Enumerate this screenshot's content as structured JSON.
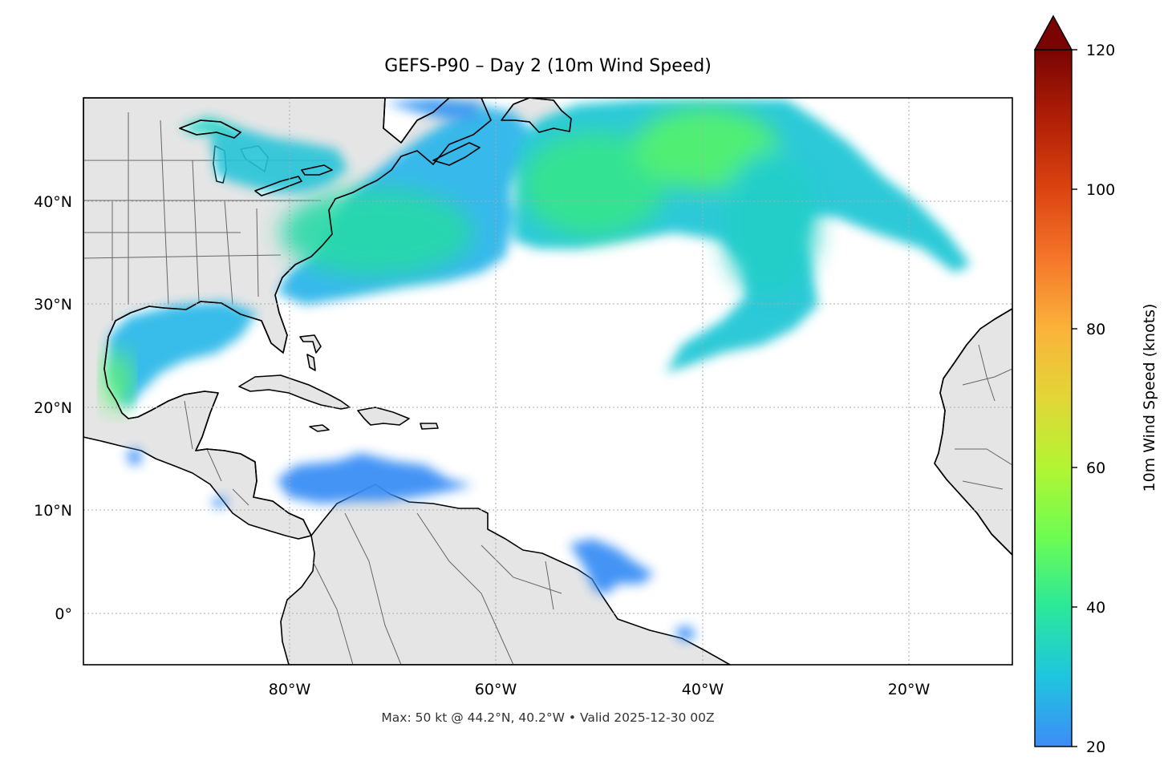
{
  "title": "GEFS-P90 – Day 2 (10m Wind Speed)",
  "footer": "Max: 50 kt @ 44.2°N, 40.2°W • Valid 2025-12-30 00Z",
  "map": {
    "projection": "PlateCarree",
    "lon_range": [
      -100,
      -10
    ],
    "lat_range": [
      -5,
      50
    ],
    "gridlines": "dotted",
    "land_color": "#e5e5e5",
    "ocean_color": "#ffffff",
    "lat_ticks": [
      {
        "value": 40,
        "label": "40°N"
      },
      {
        "value": 30,
        "label": "30°N"
      },
      {
        "value": 20,
        "label": "20°N"
      },
      {
        "value": 10,
        "label": "10°N"
      },
      {
        "value": 0,
        "label": "0°"
      }
    ],
    "lon_ticks": [
      {
        "value": -80,
        "label": "80°W"
      },
      {
        "value": -60,
        "label": "60°W"
      },
      {
        "value": -40,
        "label": "40°W"
      },
      {
        "value": -20,
        "label": "20°W"
      }
    ]
  },
  "colorbar": {
    "label": "10m Wind Speed (knots)",
    "min": 20,
    "max": 120,
    "extend": "max",
    "ticks": [
      "20",
      "40",
      "60",
      "80",
      "100",
      "120"
    ],
    "colors": [
      "#3d8cf7",
      "#1fc5df",
      "#2ae89a",
      "#6dfc52",
      "#b2f533",
      "#e2d637",
      "#fbb23a",
      "#f5762a",
      "#db4411",
      "#b01f06",
      "#7a0403"
    ]
  },
  "chart_data": {
    "type": "heatmap",
    "title": "GEFS-P90 – Day 2 (10m Wind Speed)",
    "variable": "10m Wind Speed (knots)",
    "units": "knots",
    "max": {
      "value": 50,
      "lat": 44.2,
      "lon": -40.2
    },
    "valid": "2025-12-30 00Z",
    "scale": [
      20,
      120
    ],
    "regions": [
      {
        "lat": 41,
        "lon": -52,
        "value": 40
      },
      {
        "lat": 45,
        "lon": -40,
        "value": 50
      },
      {
        "lat": 37,
        "lon": -68,
        "value": 36
      },
      {
        "lat": 33,
        "lon": -45,
        "value": 30
      },
      {
        "lat": 23,
        "lon": -97,
        "value": 42
      },
      {
        "lat": 27,
        "lon": -90,
        "value": 30
      },
      {
        "lat": 13,
        "lon": -72,
        "value": 26
      },
      {
        "lat": 5,
        "lon": -48,
        "value": 24
      },
      {
        "lat": 45,
        "lon": -85,
        "value": 32
      }
    ]
  }
}
